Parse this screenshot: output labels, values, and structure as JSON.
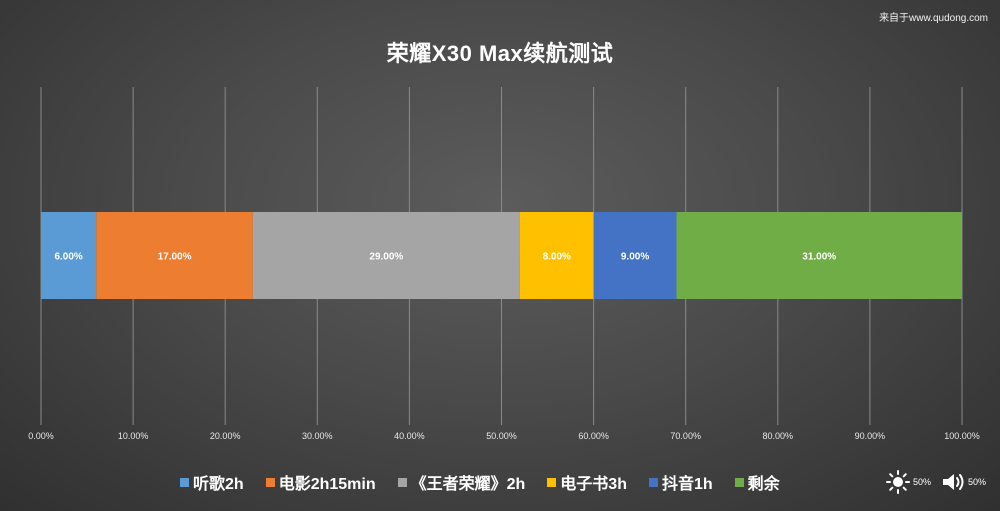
{
  "source": "来自于www.qudong.com",
  "chart_data": {
    "type": "bar",
    "orientation": "horizontal-stacked-100",
    "title": "荣耀X30 Max续航测试",
    "xlim": [
      0,
      100
    ],
    "x_ticks": [
      "0.00%",
      "10.00%",
      "20.00%",
      "30.00%",
      "40.00%",
      "50.00%",
      "60.00%",
      "70.00%",
      "80.00%",
      "90.00%",
      "100.00%"
    ],
    "grid": true,
    "legend_position": "bottom",
    "series": [
      {
        "name": "听歌2h",
        "value": 6,
        "label": "6.00%",
        "color": "#5b9bd5"
      },
      {
        "name": "电影2h15min",
        "value": 17,
        "label": "17.00%",
        "color": "#ed7d31"
      },
      {
        "name": "《王者荣耀》2h",
        "value": 29,
        "label": "29.00%",
        "color": "#a5a5a5"
      },
      {
        "name": "电子书3h",
        "value": 8,
        "label": "8.00%",
        "color": "#ffc000"
      },
      {
        "name": "抖音1h",
        "value": 9,
        "label": "9.00%",
        "color": "#4472c4"
      },
      {
        "name": "剩余",
        "value": 31,
        "label": "31.00%",
        "color": "#70ad47"
      }
    ]
  },
  "indicators": {
    "brightness_icon": "sun-icon",
    "brightness": "50%",
    "volume_icon": "speaker-icon",
    "volume": "50%"
  }
}
